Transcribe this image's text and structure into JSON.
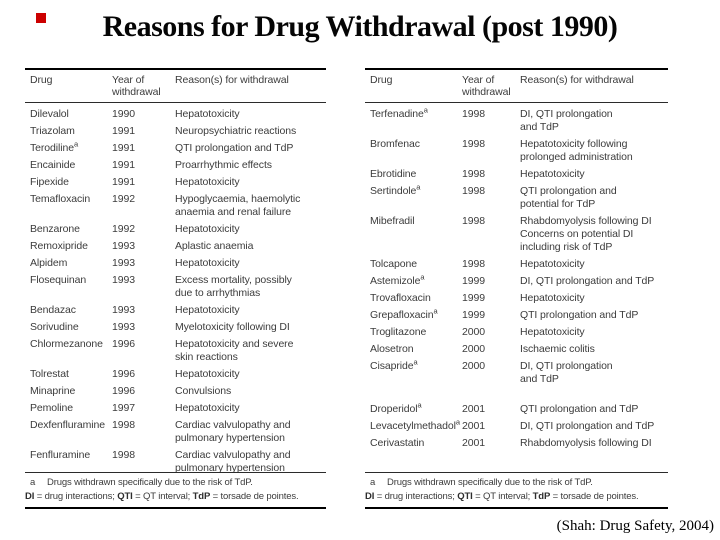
{
  "title": "Reasons for Drug Withdrawal (post 1990)",
  "citation": "(Shah: Drug Safety, 2004)",
  "bullet_color": "#cc0000",
  "tables": [
    {
      "columns": [
        "Drug",
        "Year of withdrawal",
        "Reason(s) for withdrawal"
      ],
      "rows": [
        {
          "drug": "Dilevalol",
          "sup": "",
          "year": "1990",
          "reason": "Hepatotoxicity"
        },
        {
          "drug": "Triazolam",
          "sup": "",
          "year": "1991",
          "reason": "Neuropsychiatric reactions"
        },
        {
          "drug": "Terodiline",
          "sup": "a",
          "year": "1991",
          "reason": "QTI prolongation and TdP"
        },
        {
          "drug": "Encainide",
          "sup": "",
          "year": "1991",
          "reason": "Proarrhythmic effects"
        },
        {
          "drug": "Fipexide",
          "sup": "",
          "year": "1991",
          "reason": "Hepatotoxicity"
        },
        {
          "drug": "Temafloxacin",
          "sup": "",
          "year": "1992",
          "reason": "Hypoglycaemia, haemolytic\nanaemia and renal failure"
        },
        {
          "drug": "Benzarone",
          "sup": "",
          "year": "1992",
          "reason": "Hepatotoxicity"
        },
        {
          "drug": "Remoxipride",
          "sup": "",
          "year": "1993",
          "reason": "Aplastic anaemia"
        },
        {
          "drug": "Alpidem",
          "sup": "",
          "year": "1993",
          "reason": "Hepatotoxicity"
        },
        {
          "drug": "Flosequinan",
          "sup": "",
          "year": "1993",
          "reason": "Excess mortality, possibly\ndue to arrhythmias"
        },
        {
          "drug": "Bendazac",
          "sup": "",
          "year": "1993",
          "reason": "Hepatotoxicity"
        },
        {
          "drug": "Sorivudine",
          "sup": "",
          "year": "1993",
          "reason": "Myelotoxicity following DI"
        },
        {
          "drug": "Chlormezanone",
          "sup": "",
          "year": "1996",
          "reason": "Hepatotoxicity and severe\nskin reactions"
        },
        {
          "drug": "Tolrestat",
          "sup": "",
          "year": "1996",
          "reason": "Hepatotoxicity"
        },
        {
          "drug": "Minaprine",
          "sup": "",
          "year": "1996",
          "reason": "Convulsions"
        },
        {
          "drug": "Pemoline",
          "sup": "",
          "year": "1997",
          "reason": "Hepatotoxicity"
        },
        {
          "drug": "Dexfenfluramine",
          "sup": "",
          "year": "1998",
          "reason": "Cardiac valvulopathy and\npulmonary hypertension"
        },
        {
          "drug": "Fenfluramine",
          "sup": "",
          "year": "1998",
          "reason": "Cardiac valvulopathy and\npulmonary hypertension"
        }
      ],
      "footnote_marker": "a",
      "footnote_text": "Drugs withdrawn specifically due to the risk of TdP.",
      "abbreviations": [
        {
          "abbr": "DI",
          "def": "drug interactions"
        },
        {
          "abbr": "QTI",
          "def": "QT interval"
        },
        {
          "abbr": "TdP",
          "def": "torsade de pointes"
        }
      ]
    },
    {
      "columns": [
        "Drug",
        "Year of withdrawal",
        "Reason(s) for withdrawal"
      ],
      "rows": [
        {
          "drug": "Terfenadine",
          "sup": "a",
          "year": "1998",
          "reason": "DI, QTI prolongation\nand TdP"
        },
        {
          "drug": "Bromfenac",
          "sup": "",
          "year": "1998",
          "reason": "Hepatotoxicity following\nprolonged administration"
        },
        {
          "drug": "Ebrotidine",
          "sup": "",
          "year": "1998",
          "reason": "Hepatotoxicity"
        },
        {
          "drug": "Sertindole",
          "sup": "a",
          "year": "1998",
          "reason": "QTI prolongation and\npotential for TdP"
        },
        {
          "drug": "Mibefradil",
          "sup": "",
          "year": "1998",
          "reason": "Rhabdomyolysis following DI\nConcerns on potential DI\nincluding risk of TdP"
        },
        {
          "drug": "Tolcapone",
          "sup": "",
          "year": "1998",
          "reason": "Hepatotoxicity"
        },
        {
          "drug": "Astemizole",
          "sup": "a",
          "year": "1999",
          "reason": "DI, QTI prolongation and TdP"
        },
        {
          "drug": "Trovafloxacin",
          "sup": "",
          "year": "1999",
          "reason": "Hepatotoxicity"
        },
        {
          "drug": "Grepafloxacin",
          "sup": "a",
          "year": "1999",
          "reason": "QTI prolongation and TdP"
        },
        {
          "drug": "Troglitazone",
          "sup": "",
          "year": "2000",
          "reason": "Hepatotoxicity"
        },
        {
          "drug": "Alosetron",
          "sup": "",
          "year": "2000",
          "reason": "Ischaemic colitis"
        },
        {
          "drug": "Cisapride",
          "sup": "a",
          "year": "2000",
          "reason": "DI, QTI prolongation\nand TdP"
        },
        {
          "drug": "Droperidol",
          "sup": "a",
          "year": "2001",
          "reason": "QTI prolongation and TdP",
          "gap_before": true
        },
        {
          "drug": "Levacetylmethadol",
          "sup": "a",
          "year": "2001",
          "reason": "DI, QTI prolongation and TdP"
        },
        {
          "drug": "Cerivastatin",
          "sup": "",
          "year": "2001",
          "reason": "Rhabdomyolysis following DI"
        }
      ],
      "footnote_marker": "a",
      "footnote_text": "Drugs withdrawn specifically due to the risk of TdP.",
      "abbreviations": [
        {
          "abbr": "DI",
          "def": "drug interactions"
        },
        {
          "abbr": "QTI",
          "def": "QT interval"
        },
        {
          "abbr": "TdP",
          "def": "torsade de pointes"
        }
      ]
    }
  ]
}
